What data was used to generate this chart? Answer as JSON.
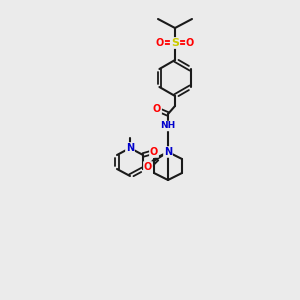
{
  "background_color": "#ebebeb",
  "bond_color": "#1a1a1a",
  "atom_colors": {
    "O": "#ff0000",
    "N": "#0000cc",
    "S": "#cccc00",
    "H": "#008080",
    "C": "#1a1a1a"
  },
  "figsize": [
    3.0,
    3.0
  ],
  "dpi": 100
}
